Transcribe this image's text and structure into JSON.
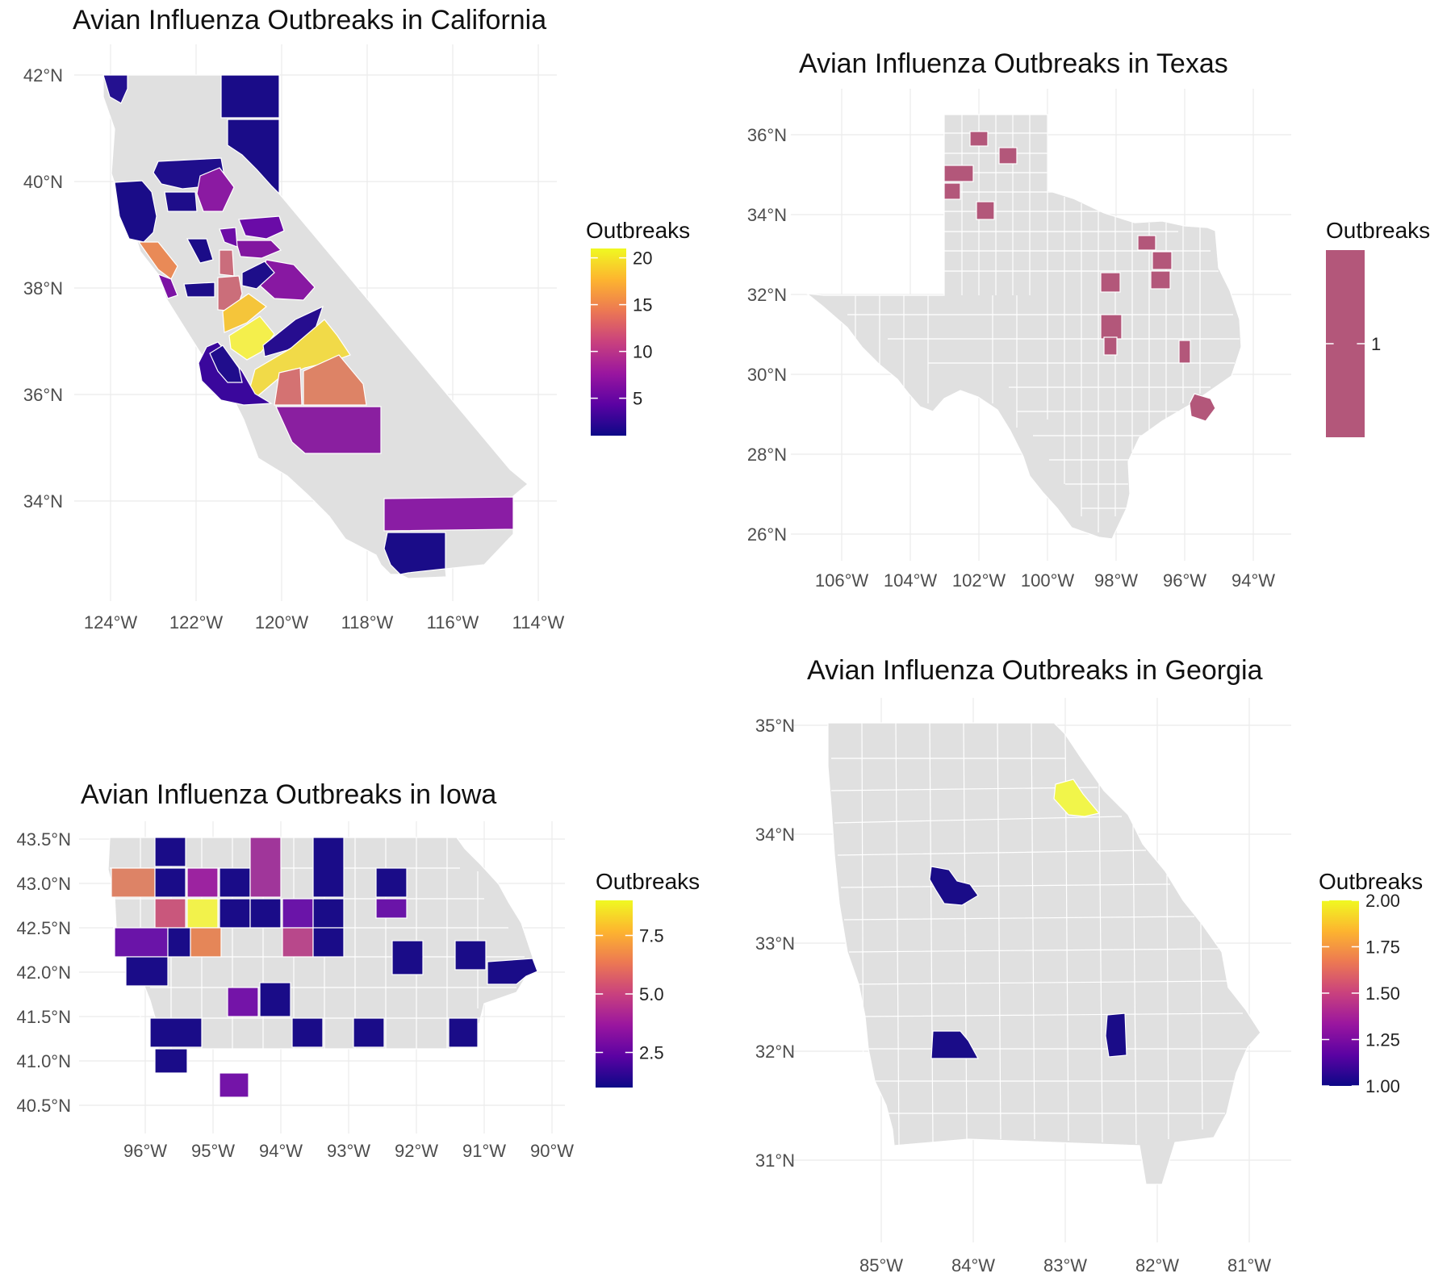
{
  "colors": {
    "background": "#ffffff",
    "land": "#e0e0e0",
    "grid": "#ebebeb",
    "palette": "plasma",
    "plasma_stops": [
      "#0d0887",
      "#5b02a3",
      "#9a169f",
      "#c9417e",
      "#ec7853",
      "#fdb42f",
      "#f0f921"
    ]
  },
  "chart_data": [
    {
      "id": "california",
      "type": "choropleth",
      "title": "Avian Influenza Outbreaks in California",
      "legend": {
        "title": "Outbreaks",
        "range": [
          1,
          21
        ],
        "ticks": [
          20,
          15,
          10,
          5
        ],
        "tick_labels": [
          "20",
          "15",
          "10",
          "5"
        ],
        "placement": "right"
      },
      "x_ticks": [
        -124,
        -122,
        -120,
        -118,
        -116,
        -114
      ],
      "x_tick_labels": [
        "124°W",
        "122°W",
        "120°W",
        "118°W",
        "116°W",
        "114°W"
      ],
      "y_ticks": [
        42,
        40,
        38,
        36,
        34
      ],
      "y_tick_labels": [
        "42°N",
        "40°N",
        "38°N",
        "36°N",
        "34°N"
      ],
      "xlim": [
        -124.6,
        -113.9
      ],
      "ylim": [
        32.3,
        42.3
      ],
      "grid": true
    },
    {
      "id": "texas",
      "type": "choropleth",
      "title": "Avian Influenza Outbreaks in Texas",
      "legend": {
        "title": "Outbreaks",
        "range": [
          0.5,
          1.5
        ],
        "ticks": [
          1
        ],
        "tick_labels": [
          "1"
        ],
        "single_value_color": "#b3577a",
        "placement": "right"
      },
      "x_ticks": [
        -106,
        -104,
        -102,
        -100,
        -98,
        -96,
        -94
      ],
      "x_tick_labels": [
        "106°W",
        "104°W",
        "102°W",
        "100°W",
        "98°W",
        "96°W",
        "94°W"
      ],
      "y_ticks": [
        36,
        34,
        32,
        30,
        28,
        26
      ],
      "y_tick_labels": [
        "36°N",
        "34°N",
        "32°N",
        "30°N",
        "28°N",
        "26°N"
      ],
      "xlim": [
        -107.1,
        -93.0
      ],
      "ylim": [
        25.4,
        36.9
      ],
      "grid": true
    },
    {
      "id": "iowa",
      "type": "choropleth",
      "title": "Avian Influenza Outbreaks in Iowa",
      "legend": {
        "title": "Outbreaks",
        "range": [
          1,
          9
        ],
        "ticks": [
          7.5,
          5.0,
          2.5
        ],
        "tick_labels": [
          "7.5",
          "5.0",
          "2.5"
        ],
        "placement": "right"
      },
      "x_ticks": [
        -96,
        -95,
        -94,
        -93,
        -92,
        -91,
        -90
      ],
      "x_tick_labels": [
        "96°W",
        "95°W",
        "94°W",
        "93°W",
        "92°W",
        "91°W",
        "90°W"
      ],
      "y_ticks": [
        43.5,
        43.0,
        42.5,
        42.0,
        41.5,
        41.0,
        40.5
      ],
      "y_tick_labels": [
        "43.5°N",
        "43.0°N",
        "42.5°N",
        "42.0°N",
        "41.5°N",
        "41.0°N",
        "40.5°N"
      ],
      "xlim": [
        -96.85,
        -89.9
      ],
      "ylim": [
        40.3,
        43.65
      ],
      "grid": true
    },
    {
      "id": "georgia",
      "type": "choropleth",
      "title": "Avian Influenza Outbreaks in Georgia",
      "legend": {
        "title": "Outbreaks",
        "range": [
          1.0,
          2.0
        ],
        "ticks": [
          2.0,
          1.75,
          1.5,
          1.25,
          1.0
        ],
        "tick_labels": [
          "2.00",
          "1.75",
          "1.50",
          "1.25",
          "1.00"
        ],
        "placement": "right"
      },
      "x_ticks": [
        -85,
        -84,
        -83,
        -82,
        -81
      ],
      "x_tick_labels": [
        "85°W",
        "84°W",
        "83°W",
        "82°W",
        "81°W"
      ],
      "y_ticks": [
        35,
        34,
        33,
        32,
        31
      ],
      "y_tick_labels": [
        "35°N",
        "34°N",
        "33°N",
        "32°N",
        "31°N"
      ],
      "xlim": [
        -86.1,
        -80.4
      ],
      "ylim": [
        30.2,
        35.25
      ],
      "grid": true
    }
  ]
}
